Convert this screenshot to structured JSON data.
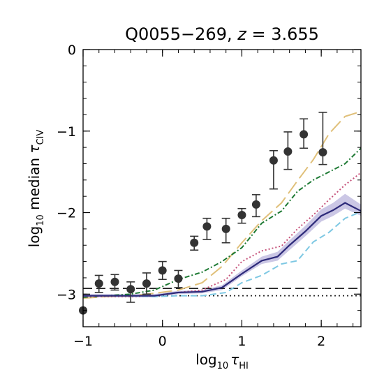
{
  "chart_data": {
    "type": "line",
    "title": {
      "main": "Q0055−269, ",
      "var": "z",
      "rest": " = 3.655"
    },
    "xlabel": {
      "prefix": "log",
      "sub": "10",
      "sym": "τ",
      "symsub": "HI"
    },
    "ylabel": {
      "prefix": "log",
      "sub": "10",
      "mid": " median ",
      "sym": "τ",
      "symsub": "CIV"
    },
    "xlim": [
      -1.0,
      2.5
    ],
    "ylim": [
      -3.4,
      0.0
    ],
    "xticks": [
      -1,
      0,
      1,
      2
    ],
    "xtick_labels": [
      "−1",
      "0",
      "1",
      "2"
    ],
    "yticks": [
      0,
      -1,
      -2,
      -3
    ],
    "ytick_labels": [
      "0",
      "−1",
      "−2",
      "−3"
    ],
    "observed": {
      "x": [
        -1.0,
        -0.8,
        -0.6,
        -0.4,
        -0.2,
        0.0,
        0.2,
        0.4,
        0.56,
        0.8,
        1.0,
        1.18,
        1.4,
        1.58,
        1.78,
        2.02
      ],
      "y": [
        -3.2,
        -2.87,
        -2.85,
        -2.94,
        -2.87,
        -2.71,
        -2.81,
        -2.37,
        -2.17,
        -2.2,
        -2.03,
        -1.9,
        -1.36,
        -1.25,
        -1.04,
        -1.26
      ],
      "yerr_low": [
        0,
        0.11,
        0.1,
        0.16,
        0.13,
        0.11,
        0.11,
        0.09,
        0.16,
        0.17,
        0.1,
        0.15,
        0.35,
        0.22,
        0.17,
        0.15
      ],
      "yerr_high": [
        0,
        0.1,
        0.09,
        0.09,
        0.13,
        0.11,
        0.1,
        0.08,
        0.1,
        0.13,
        0.08,
        0.12,
        0.12,
        0.24,
        0.19,
        0.49
      ],
      "color": "#333333"
    },
    "series": [
      {
        "x": [
          -1.0,
          -0.7,
          -0.4,
          -0.1,
          0.2,
          0.5,
          0.75,
          1.0,
          1.25,
          1.5,
          1.7,
          1.9,
          2.1,
          2.3,
          2.5
        ],
        "y": [
          -3.05,
          -3.03,
          -3.02,
          -2.99,
          -2.95,
          -2.86,
          -2.66,
          -2.37,
          -2.1,
          -1.88,
          -1.61,
          -1.35,
          -1.03,
          -0.82,
          -0.76
        ],
        "color": "#e0c07a",
        "dash": "20 7"
      },
      {
        "x": [
          -1.0,
          -0.7,
          -0.4,
          -0.1,
          0.2,
          0.5,
          0.75,
          1.0,
          1.25,
          1.5,
          1.7,
          1.9,
          2.1,
          2.3,
          2.5
        ],
        "y": [
          -3.04,
          -3.02,
          -3.0,
          -2.95,
          -2.82,
          -2.73,
          -2.6,
          -2.43,
          -2.13,
          -1.98,
          -1.74,
          -1.6,
          -1.5,
          -1.4,
          -1.21
        ],
        "color": "#1e7a34",
        "dash": "7 3 2 3"
      },
      {
        "x": [
          -1.0,
          -0.7,
          -0.4,
          -0.1,
          0.2,
          0.5,
          0.8,
          1.0,
          1.25,
          1.5,
          1.7,
          1.9,
          2.1,
          2.3,
          2.5
        ],
        "y": [
          -3.03,
          -3.03,
          -3.03,
          -3.02,
          -2.98,
          -2.95,
          -2.82,
          -2.6,
          -2.47,
          -2.41,
          -2.2,
          -2.03,
          -1.84,
          -1.66,
          -1.51
        ],
        "color": "#c5527a",
        "dash": "2 3"
      },
      {
        "x": [
          -1.0,
          -0.7,
          -0.4,
          -0.1,
          0.2,
          0.5,
          0.8,
          1.0,
          1.25,
          1.5,
          1.7,
          1.9,
          2.1,
          2.3,
          2.5
        ],
        "y": [
          -3.02,
          -3.02,
          -3.02,
          -3.03,
          -3.02,
          -3.02,
          -2.98,
          -2.86,
          -2.77,
          -2.63,
          -2.59,
          -2.36,
          -2.24,
          -2.07,
          -1.99
        ],
        "color": "#7ec8e3",
        "dash": "9 5"
      },
      {
        "x": [
          -1.0,
          -0.7,
          -0.4,
          -0.1,
          0.2,
          0.5,
          0.75,
          1.0,
          1.25,
          1.45,
          1.6,
          1.8,
          2.0,
          2.15,
          2.3,
          2.5
        ],
        "y": [
          -3.02,
          -3.02,
          -3.02,
          -3.02,
          -2.98,
          -2.97,
          -2.92,
          -2.75,
          -2.59,
          -2.54,
          -2.4,
          -2.23,
          -2.04,
          -1.97,
          -1.88,
          -1.98
        ],
        "color": "#2d2a7a",
        "dash": "",
        "band_lower": [
          -3.04,
          -3.04,
          -3.04,
          -3.04,
          -3.0,
          -2.99,
          -2.95,
          -2.78,
          -2.63,
          -2.59,
          -2.46,
          -2.29,
          -2.11,
          -2.04,
          -1.95,
          -2.04
        ],
        "band_upper": [
          -3.0,
          -3.0,
          -3.0,
          -3.0,
          -2.96,
          -2.95,
          -2.89,
          -2.71,
          -2.54,
          -2.48,
          -2.34,
          -2.16,
          -1.96,
          -1.88,
          -1.77,
          -1.9
        ],
        "band_color": "#b9b4dc"
      }
    ],
    "hlines": [
      {
        "y": -2.93,
        "color": "#222222",
        "dash": "13 6"
      },
      {
        "y": -3.02,
        "color": "#222222",
        "dash": "2 4"
      }
    ],
    "grid": false,
    "legend": false
  }
}
